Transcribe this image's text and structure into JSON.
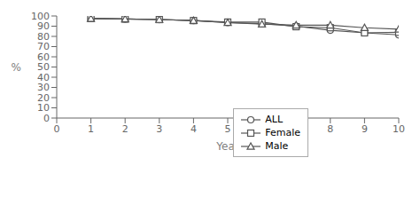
{
  "chart_data": {
    "type": "line",
    "x_label": "Year",
    "y_label": "%",
    "x": [
      1,
      2,
      3,
      4,
      5,
      6,
      7,
      8,
      9,
      10
    ],
    "series": [
      {
        "name": "ALL",
        "color": "#555555",
        "marker": "circle",
        "values": [
          97.5,
          97.0,
          96.5,
          95.5,
          93.5,
          92.5,
          90.0,
          86.0,
          83.5,
          81.5
        ]
      },
      {
        "name": "Female",
        "color": "#555555",
        "marker": "square",
        "values": [
          97.5,
          97.0,
          96.5,
          95.5,
          94.0,
          94.0,
          89.5,
          88.5,
          83.5,
          84.0
        ]
      },
      {
        "name": "Male",
        "color": "#555555",
        "marker": "triangle",
        "values": [
          97.5,
          97.0,
          96.5,
          95.5,
          93.5,
          92.0,
          91.0,
          91.0,
          88.5,
          87.0
        ]
      }
    ],
    "xlim": [
      0,
      10
    ],
    "ylim": [
      0,
      100
    ],
    "xticks": [
      0,
      1,
      2,
      3,
      4,
      5,
      6,
      7,
      8,
      9,
      10
    ],
    "yticks": [
      0,
      10,
      20,
      30,
      40,
      50,
      60,
      70,
      80,
      90,
      100
    ],
    "grid": false,
    "legend": "lower center"
  }
}
